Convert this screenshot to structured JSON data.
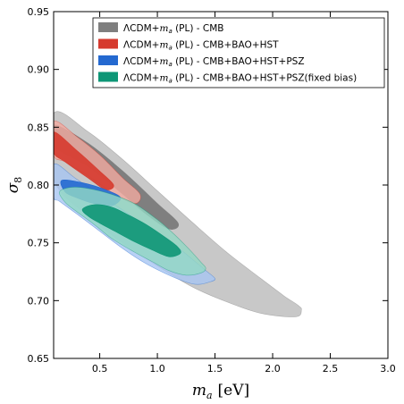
{
  "chart_data": {
    "type": "contour",
    "xlabel_main": "m",
    "xlabel_sub": "a",
    "xlabel_unit": "[eV]",
    "ylabel_main": "σ",
    "ylabel_sub": "8",
    "xlim": [
      0.1,
      3.0
    ],
    "ylim": [
      0.65,
      0.95
    ],
    "xticks": [
      0.5,
      1.0,
      1.5,
      2.0,
      2.5,
      3.0
    ],
    "xtick_labels": [
      "0.5",
      "1.0",
      "1.5",
      "2.0",
      "2.5",
      "3.0"
    ],
    "yticks": [
      0.65,
      0.7,
      0.75,
      0.8,
      0.85,
      0.9,
      0.95
    ],
    "ytick_labels": [
      "0.65",
      "0.70",
      "0.75",
      "0.80",
      "0.85",
      "0.90",
      "0.95"
    ],
    "grid": false,
    "legend_position": "top-right",
    "series": [
      {
        "name_prefix": "ΛCDM+",
        "name_param": "m",
        "name_param_sub": "a",
        "name_suffix": " (PL) - CMB",
        "color_outer": "#c8c8c8",
        "color_inner": "#7f7f7f",
        "outer": [
          [
            0.1,
            0.862
          ],
          [
            0.4,
            0.846
          ],
          [
            0.7,
            0.822
          ],
          [
            1.0,
            0.795
          ],
          [
            1.3,
            0.768
          ],
          [
            1.6,
            0.742
          ],
          [
            1.9,
            0.719
          ],
          [
            2.1,
            0.704
          ],
          [
            2.22,
            0.696
          ],
          [
            2.25,
            0.692
          ],
          [
            2.2,
            0.686
          ],
          [
            1.9,
            0.689
          ],
          [
            1.6,
            0.699
          ],
          [
            1.3,
            0.712
          ],
          [
            1.0,
            0.73
          ],
          [
            0.7,
            0.75
          ],
          [
            0.4,
            0.773
          ],
          [
            0.1,
            0.805
          ]
        ],
        "inner": [
          [
            0.1,
            0.852
          ],
          [
            0.4,
            0.836
          ],
          [
            0.7,
            0.812
          ],
          [
            1.0,
            0.784
          ],
          [
            1.18,
            0.767
          ],
          [
            1.1,
            0.762
          ],
          [
            0.9,
            0.775
          ],
          [
            0.7,
            0.792
          ],
          [
            0.4,
            0.816
          ],
          [
            0.1,
            0.834
          ]
        ]
      },
      {
        "name_prefix": "ΛCDM+",
        "name_param": "m",
        "name_param_sub": "a",
        "name_suffix": " (PL) - CMB+BAO+HST",
        "color_outer": "#f2aaa0",
        "color_inner": "#d63a2e",
        "outer": [
          [
            0.1,
            0.855
          ],
          [
            0.3,
            0.842
          ],
          [
            0.5,
            0.826
          ],
          [
            0.7,
            0.806
          ],
          [
            0.85,
            0.792
          ],
          [
            0.8,
            0.784
          ],
          [
            0.6,
            0.794
          ],
          [
            0.4,
            0.808
          ],
          [
            0.2,
            0.82
          ],
          [
            0.1,
            0.826
          ]
        ],
        "inner": [
          [
            0.1,
            0.846
          ],
          [
            0.3,
            0.83
          ],
          [
            0.5,
            0.812
          ],
          [
            0.62,
            0.8
          ],
          [
            0.55,
            0.796
          ],
          [
            0.4,
            0.806
          ],
          [
            0.2,
            0.82
          ],
          [
            0.1,
            0.828
          ]
        ]
      },
      {
        "name_prefix": "ΛCDM+",
        "name_param": "m",
        "name_param_sub": "a",
        "name_suffix": " (PL) - CMB+BAO+HST+PSZ",
        "color_outer": "#a8c6f2",
        "color_inner": "#2469d0",
        "outer": [
          [
            0.1,
            0.818
          ],
          [
            0.3,
            0.805
          ],
          [
            0.6,
            0.785
          ],
          [
            0.9,
            0.765
          ],
          [
            1.15,
            0.748
          ],
          [
            1.3,
            0.736
          ],
          [
            1.42,
            0.726
          ],
          [
            1.5,
            0.719
          ],
          [
            1.45,
            0.716
          ],
          [
            1.35,
            0.714
          ],
          [
            1.25,
            0.716
          ],
          [
            1.1,
            0.722
          ],
          [
            0.9,
            0.732
          ],
          [
            0.7,
            0.745
          ],
          [
            0.5,
            0.76
          ],
          [
            0.3,
            0.775
          ],
          [
            0.15,
            0.786
          ],
          [
            0.1,
            0.79
          ]
        ],
        "inner": [
          [
            0.17,
            0.804
          ],
          [
            0.35,
            0.802
          ],
          [
            0.55,
            0.796
          ],
          [
            0.68,
            0.789
          ],
          [
            0.6,
            0.782
          ],
          [
            0.45,
            0.784
          ],
          [
            0.3,
            0.789
          ],
          [
            0.2,
            0.794
          ]
        ]
      },
      {
        "name_prefix": "ΛCDM+",
        "name_param": "m",
        "name_param_sub": "a",
        "name_suffix": " (PL) - CMB+BAO+HST+PSZ(fixed bias)",
        "color_outer": "#92d8c4",
        "color_inner": "#0e9676",
        "outer": [
          [
            0.15,
            0.794
          ],
          [
            0.25,
            0.798
          ],
          [
            0.4,
            0.797
          ],
          [
            0.6,
            0.792
          ],
          [
            0.8,
            0.784
          ],
          [
            1.0,
            0.77
          ],
          [
            1.15,
            0.757
          ],
          [
            1.28,
            0.744
          ],
          [
            1.38,
            0.733
          ],
          [
            1.42,
            0.728
          ],
          [
            1.38,
            0.724
          ],
          [
            1.25,
            0.722
          ],
          [
            1.1,
            0.726
          ],
          [
            0.95,
            0.734
          ],
          [
            0.8,
            0.742
          ],
          [
            0.6,
            0.754
          ],
          [
            0.45,
            0.766
          ],
          [
            0.3,
            0.777
          ],
          [
            0.2,
            0.785
          ]
        ],
        "inner": [
          [
            0.35,
            0.779
          ],
          [
            0.45,
            0.783
          ],
          [
            0.6,
            0.781
          ],
          [
            0.75,
            0.774
          ],
          [
            0.9,
            0.766
          ],
          [
            1.05,
            0.756
          ],
          [
            1.17,
            0.747
          ],
          [
            1.2,
            0.741
          ],
          [
            1.1,
            0.738
          ],
          [
            0.95,
            0.744
          ],
          [
            0.8,
            0.751
          ],
          [
            0.65,
            0.759
          ],
          [
            0.5,
            0.767
          ],
          [
            0.4,
            0.773
          ]
        ]
      }
    ]
  }
}
